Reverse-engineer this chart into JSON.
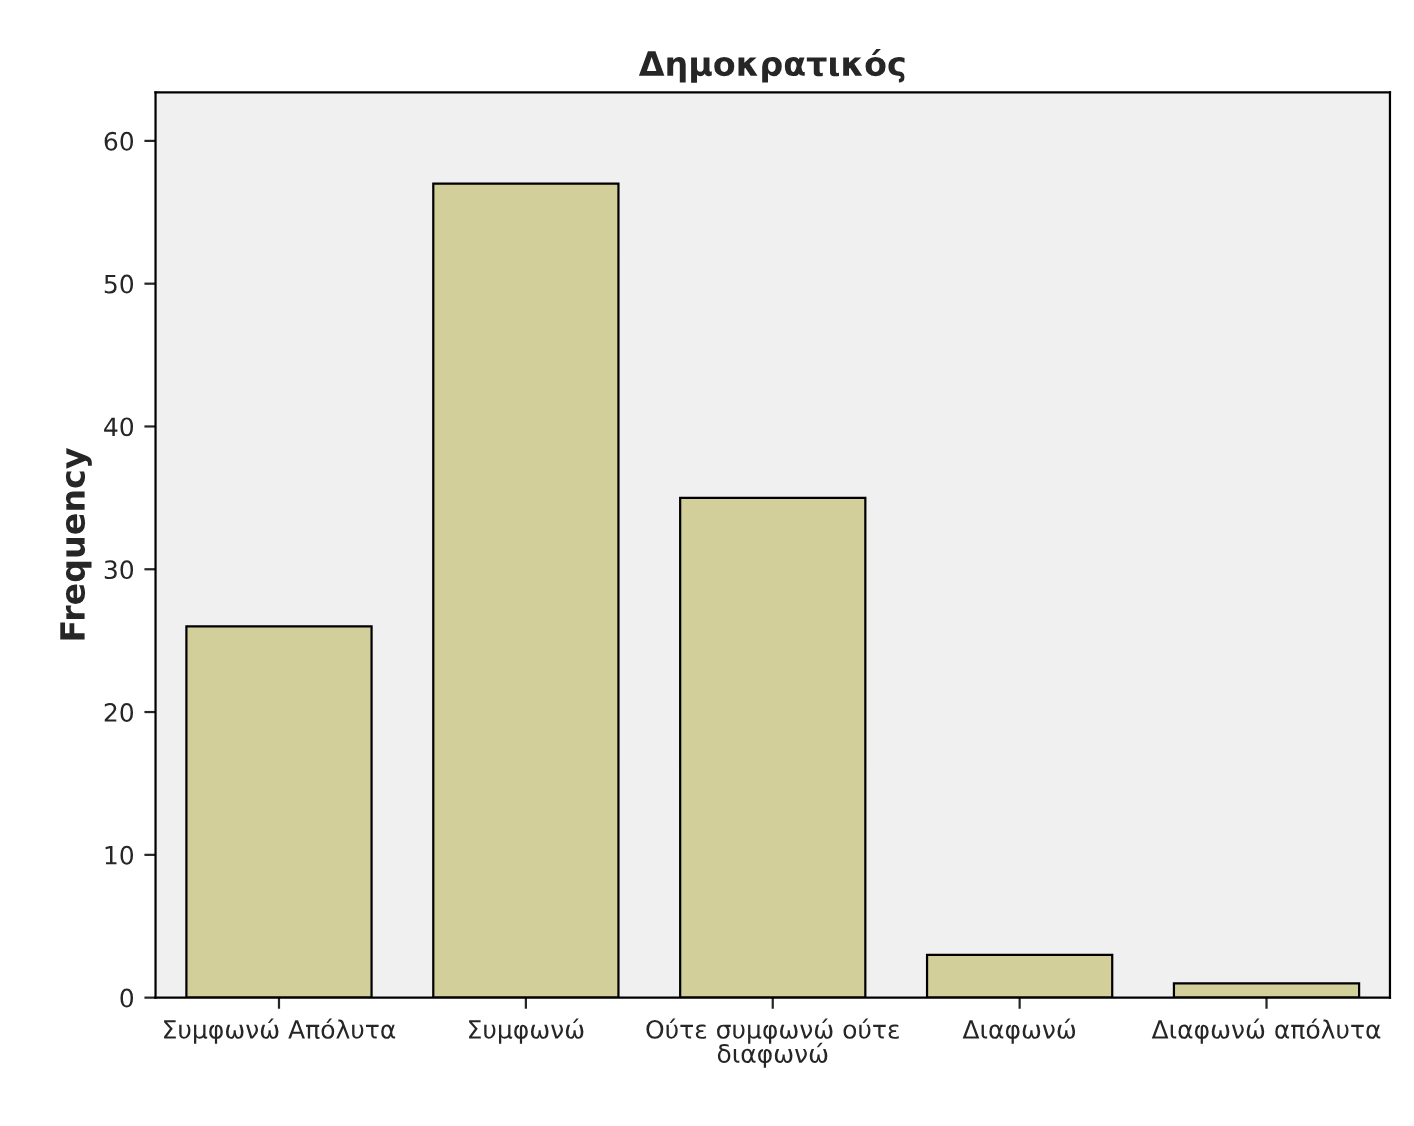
{
  "chart_data": {
    "type": "bar",
    "title": "Δημοκρατικός",
    "ylabel": "Frequency",
    "categories": [
      "Συμφωνώ Απόλυτα",
      "Συμφωνώ",
      "Ούτε συμφωνώ ούτε\nδιαφωνώ",
      "Διαφωνώ",
      "Διαφωνώ απόλυτα"
    ],
    "values": [
      26,
      57,
      35,
      3,
      1
    ],
    "color": "#d3cf9a",
    "ylim": [
      0,
      63.4
    ],
    "yticks": [
      0,
      10,
      20,
      30,
      40,
      50,
      60
    ],
    "grid": false,
    "legend": false
  }
}
